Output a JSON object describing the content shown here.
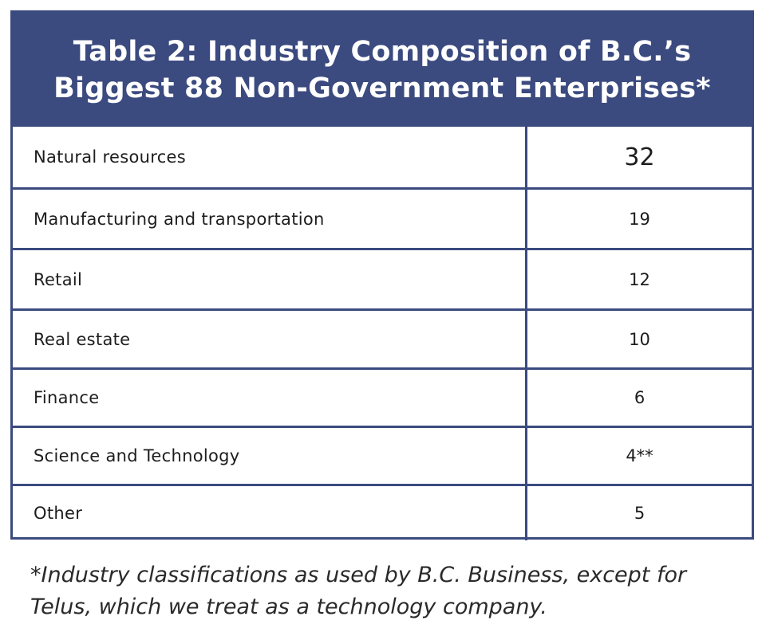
{
  "table": {
    "title_line1": "Table 2: Industry Composition of B.C.’s",
    "title_line2": "Biggest 88 Non-Government Enterprises*",
    "rows": [
      {
        "label": "Natural resources",
        "value": "32"
      },
      {
        "label": "Manufacturing and transportation",
        "value": "19"
      },
      {
        "label": "Retail",
        "value": "12"
      },
      {
        "label": "Real estate",
        "value": "10"
      },
      {
        "label": "Finance",
        "value": "6"
      },
      {
        "label": "Science and Technology",
        "value": "4**"
      },
      {
        "label": "Other",
        "value": "5"
      }
    ]
  },
  "footnote": {
    "line1": "*Industry classifications as used by B.C. Business, except for",
    "line2": "Telus, which we treat as a technology company."
  },
  "colors": {
    "header_bg": "#3b4a7f",
    "header_text": "#ffffff",
    "border": "#3b4a7f"
  }
}
